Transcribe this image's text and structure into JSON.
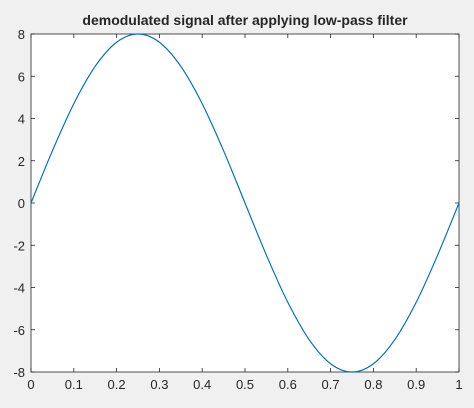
{
  "chart_data": {
    "type": "line",
    "title": "demodulated signal after applying low-pass filter",
    "xlabel": "",
    "ylabel": "",
    "xlim": [
      0,
      1
    ],
    "ylim": [
      -8,
      8
    ],
    "x_ticks": [
      "0",
      "0.1",
      "0.2",
      "0.3",
      "0.4",
      "0.5",
      "0.6",
      "0.7",
      "0.8",
      "0.9",
      "1"
    ],
    "y_ticks": [
      "-8",
      "-6",
      "-4",
      "-2",
      "0",
      "2",
      "4",
      "6",
      "8"
    ],
    "grid": false,
    "series": [
      {
        "color": "#0072bd",
        "x": [
          0,
          0.05,
          0.1,
          0.15,
          0.2,
          0.25,
          0.3,
          0.35,
          0.4,
          0.45,
          0.5,
          0.55,
          0.6,
          0.65,
          0.7,
          0.75,
          0.8,
          0.85,
          0.9,
          0.95,
          1
        ],
        "y": [
          0,
          2.47,
          4.7,
          6.47,
          7.61,
          8,
          7.61,
          6.47,
          4.7,
          2.47,
          0,
          -2.47,
          -4.7,
          -6.47,
          -7.61,
          -8,
          -7.61,
          -6.47,
          -4.7,
          -2.47,
          0
        ]
      }
    ]
  }
}
